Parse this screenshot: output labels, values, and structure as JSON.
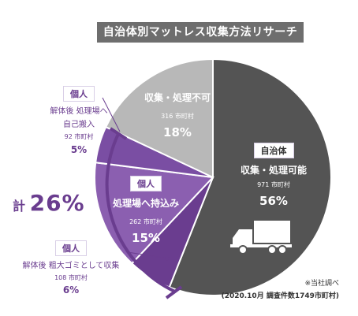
{
  "title": "自治体別マットレス収集方法リサーチ",
  "chart_data": {
    "type": "pie",
    "slices": [
      {
        "tag": "自治体",
        "name": "収集・処理可能",
        "count": "971 市町村",
        "value": 56,
        "label": "56%",
        "color": "#545454"
      },
      {
        "tag": "個人",
        "name": "解体後 粗大ゴミとして収集",
        "count": "108 市町村",
        "value": 6,
        "label": "6%",
        "color": "#6a3d8f"
      },
      {
        "tag": "個人",
        "name": "処理場へ持込み",
        "count": "262 市町村",
        "value": 15,
        "label": "15%",
        "color": "#8b5fb0"
      },
      {
        "tag": "個人",
        "name_line1": "解体後 処理場へ",
        "name_line2": "自己搬入",
        "count": "92 市町村",
        "value": 5,
        "label": "5%",
        "color": "#7a4ea3"
      },
      {
        "tag": "",
        "name": "収集・処理不可",
        "count": "316 市町村",
        "value": 18,
        "label": "18%",
        "color": "#b8b8b8"
      }
    ]
  },
  "total": {
    "prefix": "計",
    "value": "26%"
  },
  "note": {
    "line1": "※当社調べ",
    "line2": "(2020.10月 調査件数1749市町村)"
  }
}
